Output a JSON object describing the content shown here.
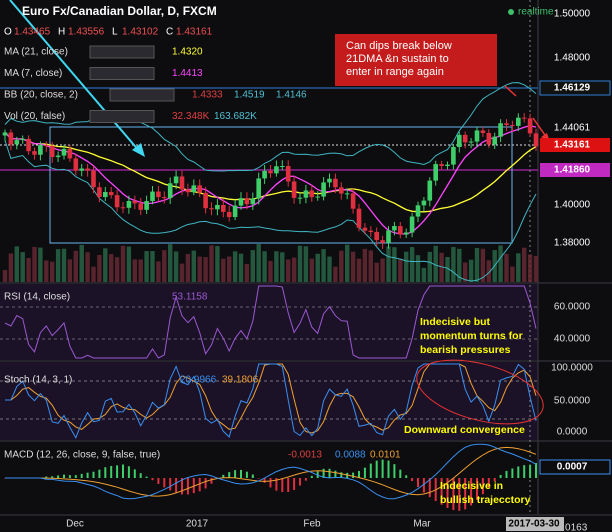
{
  "header": {
    "symbol": "Euro Fx/Canadian Dollar, D, FXCM",
    "status": "realtime",
    "ohlc": [
      {
        "key": "O",
        "value": "1.43465"
      },
      {
        "key": "H",
        "value": "1.43556"
      },
      {
        "key": "L",
        "value": "1.43102"
      },
      {
        "key": "C",
        "value": "1.43161"
      }
    ]
  },
  "indicators": [
    {
      "label": "MA (21, close)",
      "values": [
        "1.4320"
      ]
    },
    {
      "label": "MA (7, close)",
      "values": [
        "1.4413"
      ]
    },
    {
      "label": "BB (20, close, 2)",
      "values": [
        "1.4333",
        "1.4519",
        "1.4146"
      ]
    },
    {
      "label": "Vol (20, false)",
      "values": [
        "32.348K",
        "163.682K"
      ]
    }
  ],
  "price_axis": [
    "1.50000",
    "1.48000",
    "1.46129",
    "1.44061",
    "1.43161",
    "1.41860",
    "1.40000",
    "1.38000"
  ],
  "rsi": {
    "label": "RSI (14, close)",
    "values": [
      "53.1158"
    ],
    "axis": [
      "60.0000",
      "40.0000"
    ],
    "note": [
      "Indecisive but",
      "momentum turns for",
      "bearish pressures"
    ]
  },
  "stoch": {
    "label": "Stoch (14, 3, 1)",
    "values": [
      "20.9966",
      "39.1806"
    ],
    "axis": [
      "100.0000",
      "50.0000",
      "0.0000"
    ],
    "note": [
      "Downward convergence"
    ]
  },
  "macd": {
    "label": "MACD (12, 26, close, 9, false, true)",
    "values": [
      "-0.0013",
      "0.0088",
      "0.0101"
    ],
    "axis": [
      "0.0007",
      "0.0163"
    ],
    "note": [
      "Indecisive in",
      "bullish trajecctory"
    ]
  },
  "main_note": [
    "Can dips break below",
    "21DMA &n sustain to",
    "enter in range again"
  ],
  "time_axis": [
    "Dec",
    "2017",
    "Feb",
    "Mar",
    "2017-03-30"
  ]
}
